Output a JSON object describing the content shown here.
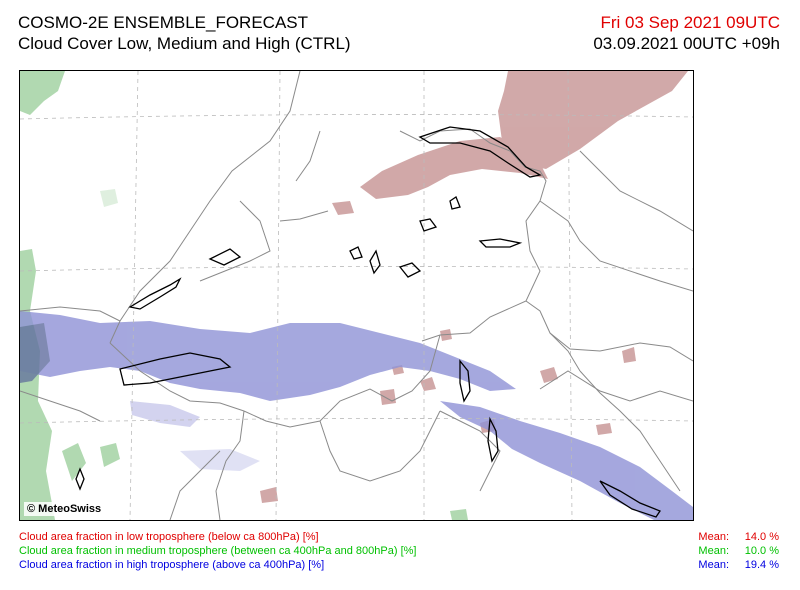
{
  "header": {
    "model": "COSMO-2E ENSEMBLE_FORECAST",
    "product": "Cloud Cover Low, Medium and High (CTRL)",
    "valid_time": "Fri 03 Sep 2021 09UTC",
    "run_lead": "03.09.2021 00UTC +09h"
  },
  "map": {
    "copyright": "© MeteoSwiss",
    "colors": {
      "low": "#c99a9a",
      "medium": "#9ed09e",
      "high": "#8f92d6",
      "borders": "#888888",
      "lakes": "#000000",
      "grid": "#bbbbbb"
    }
  },
  "legend": [
    {
      "label": "Cloud area fraction in low troposphere (below ca 800hPa) [%]",
      "mean_label": "Mean:",
      "mean_value": "14.0 %",
      "color": "#e00000"
    },
    {
      "label": "Cloud area fraction in medium troposphere (between ca 400hPa and 800hPa) [%]",
      "mean_label": "Mean:",
      "mean_value": "10.0 %",
      "color": "#00c000"
    },
    {
      "label": "Cloud area fraction in high troposphere (above ca 400hPa) [%]",
      "mean_label": "Mean:",
      "mean_value": "19.4 %",
      "color": "#0000e0"
    }
  ]
}
